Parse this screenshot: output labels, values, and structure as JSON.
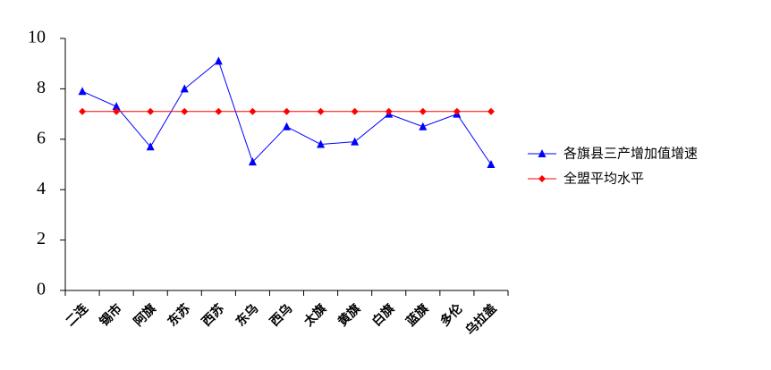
{
  "chart_data": {
    "type": "line",
    "categories": [
      "二连",
      "锡市",
      "阿旗",
      "东苏",
      "西苏",
      "东乌",
      "西乌",
      "太旗",
      "黄旗",
      "白旗",
      "蓝旗",
      "多伦",
      "乌拉盖"
    ],
    "series": [
      {
        "name": "各旗县三产增加值增速",
        "color": "#0000ff",
        "marker": "triangle",
        "values": [
          7.9,
          7.3,
          5.7,
          8.0,
          9.1,
          5.1,
          6.5,
          5.8,
          5.9,
          7.0,
          6.5,
          7.0,
          5.0
        ]
      },
      {
        "name": "全盟平均水平",
        "color": "#ff0000",
        "marker": "diamond",
        "values": [
          7.1,
          7.1,
          7.1,
          7.1,
          7.1,
          7.1,
          7.1,
          7.1,
          7.1,
          7.1,
          7.1,
          7.1,
          7.1
        ]
      }
    ],
    "ylim": [
      0,
      10
    ],
    "yticks": [
      0,
      2,
      4,
      6,
      8,
      10
    ],
    "grid": false,
    "legend": "right"
  }
}
